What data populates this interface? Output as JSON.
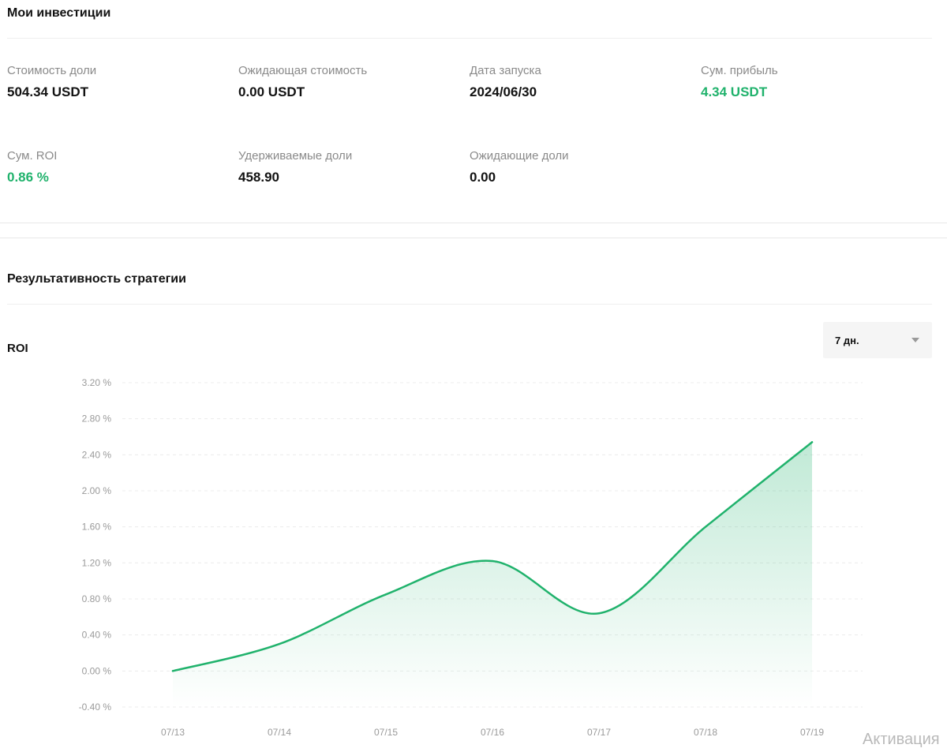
{
  "investments": {
    "title": "Мои инвестиции",
    "stats": [
      {
        "label": "Стоимость доли",
        "value": "504.34 USDT",
        "positive": false
      },
      {
        "label": "Ожидающая стоимость",
        "value": "0.00 USDT",
        "positive": false
      },
      {
        "label": "Дата запуска",
        "value": "2024/06/30",
        "positive": false
      },
      {
        "label": "Сум. прибыль",
        "value": "4.34 USDT",
        "positive": true
      },
      {
        "label": "Сум. ROI",
        "value": "0.86 %",
        "positive": true
      },
      {
        "label": "Удерживаемые доли",
        "value": "458.90",
        "positive": false
      },
      {
        "label": "Ожидающие доли",
        "value": "0.00",
        "positive": false
      }
    ]
  },
  "performance": {
    "title": "Результативность стратегии",
    "chart_label": "ROI",
    "period_select": {
      "value": "7 дн.",
      "icon": "caret-down-icon"
    }
  },
  "watermark": "Активация",
  "colors": {
    "positive": "#20b26c",
    "text": "#121212",
    "muted": "#8a8a8a"
  },
  "chart_data": {
    "type": "area",
    "x": [
      "07/13",
      "07/14",
      "07/15",
      "07/16",
      "07/17",
      "07/18",
      "07/19"
    ],
    "series": [
      {
        "values": [
          0.0,
          0.3,
          0.85,
          1.22,
          0.64,
          1.6,
          2.54
        ]
      }
    ],
    "y_ticks": [
      "3.20 %",
      "2.80 %",
      "2.40 %",
      "2.00 %",
      "1.60 %",
      "1.20 %",
      "0.80 %",
      "0.40 %",
      "0.00 %",
      "-0.40 %"
    ],
    "ylim": [
      -0.4,
      3.2
    ],
    "grid": true,
    "color": "#20b26c"
  }
}
